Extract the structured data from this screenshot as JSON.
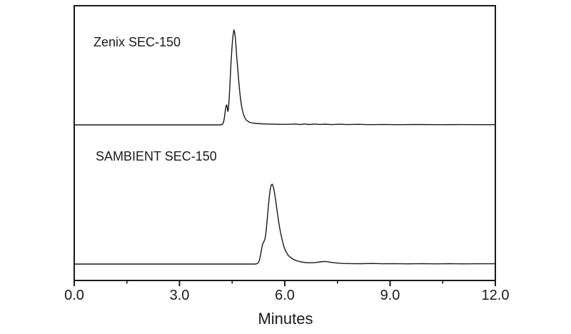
{
  "figure": {
    "background_color": "#ffffff",
    "line_color": "#1a1a1a",
    "text_color": "#1a1a1a"
  },
  "chart_data": {
    "type": "line",
    "title": "",
    "xlabel": "Minutes",
    "ylabel": "",
    "xlim": [
      0.0,
      12.0
    ],
    "grid": false,
    "legend_position": "none",
    "x_major_ticks": [
      0.0,
      3.0,
      6.0,
      9.0,
      12.0
    ],
    "x_minor_ticks": [
      1.5,
      4.5,
      7.5,
      10.5
    ],
    "x_tick_labels": [
      "0.0",
      "3.0",
      "6.0",
      "9.0",
      "12.0"
    ],
    "layout_hint": {
      "style": "two stacked chromatogram traces in one frame, no y axis ticks",
      "top_trace_baseline_frac": 0.435,
      "bottom_trace_baseline_frac": 0.94
    },
    "series": [
      {
        "name": "Zenix SEC-150",
        "peak": {
          "apex_min": 4.55,
          "pre_shoulder_min": 4.34,
          "relative_height": 133,
          "shoulder_height": 28
        },
        "y_units": "relative signal (arbitrary units)",
        "points": [
          [
            0.0,
            0
          ],
          [
            0.6,
            0
          ],
          [
            1.2,
            0
          ],
          [
            1.8,
            0
          ],
          [
            2.4,
            0
          ],
          [
            3.0,
            0
          ],
          [
            3.6,
            0
          ],
          [
            4.0,
            0
          ],
          [
            4.15,
            0
          ],
          [
            4.21,
            0.5
          ],
          [
            4.24,
            2
          ],
          [
            4.27,
            7
          ],
          [
            4.29,
            14
          ],
          [
            4.31,
            22
          ],
          [
            4.33,
            27
          ],
          [
            4.345,
            28
          ],
          [
            4.36,
            24
          ],
          [
            4.375,
            19
          ],
          [
            4.39,
            21
          ],
          [
            4.41,
            32
          ],
          [
            4.43,
            50
          ],
          [
            4.45,
            70
          ],
          [
            4.47,
            89
          ],
          [
            4.49,
            105
          ],
          [
            4.51,
            118
          ],
          [
            4.53,
            127
          ],
          [
            4.55,
            133
          ],
          [
            4.57,
            130
          ],
          [
            4.59,
            122
          ],
          [
            4.61,
            110
          ],
          [
            4.63,
            96
          ],
          [
            4.655,
            81
          ],
          [
            4.68,
            66
          ],
          [
            4.705,
            52
          ],
          [
            4.73,
            40
          ],
          [
            4.76,
            29
          ],
          [
            4.79,
            21
          ],
          [
            4.82,
            15
          ],
          [
            4.86,
            10
          ],
          [
            4.9,
            7
          ],
          [
            4.95,
            5
          ],
          [
            5.0,
            3.5
          ],
          [
            5.1,
            2.5
          ],
          [
            5.2,
            2
          ],
          [
            5.35,
            1.5
          ],
          [
            5.5,
            1.2
          ],
          [
            5.7,
            1
          ],
          [
            5.9,
            0.8
          ],
          [
            6.1,
            0.8
          ],
          [
            6.3,
            1.2
          ],
          [
            6.45,
            0.4
          ],
          [
            6.55,
            1.3
          ],
          [
            6.7,
            0.5
          ],
          [
            6.85,
            1.2
          ],
          [
            7.0,
            0.6
          ],
          [
            7.15,
            1.0
          ],
          [
            7.35,
            0.4
          ],
          [
            7.55,
            0.9
          ],
          [
            7.8,
            0.4
          ],
          [
            8.1,
            0.8
          ],
          [
            8.4,
            0.3
          ],
          [
            8.8,
            0.6
          ],
          [
            9.2,
            0.3
          ],
          [
            9.8,
            0.5
          ],
          [
            10.4,
            0.3
          ],
          [
            11.0,
            0.4
          ],
          [
            11.5,
            0.3
          ],
          [
            12.0,
            0.3
          ]
        ]
      },
      {
        "name": "SAMBIENT SEC-150",
        "peak": {
          "apex_min": 5.64,
          "pre_shoulder_min": 5.41,
          "relative_height": 112,
          "shoulder_height": 32
        },
        "y_units": "relative signal (arbitrary units)",
        "points": [
          [
            0.0,
            0
          ],
          [
            0.8,
            0
          ],
          [
            1.6,
            0
          ],
          [
            2.4,
            0
          ],
          [
            3.2,
            0
          ],
          [
            4.0,
            0
          ],
          [
            4.6,
            0
          ],
          [
            5.0,
            0
          ],
          [
            5.15,
            0
          ],
          [
            5.21,
            0.5
          ],
          [
            5.25,
            2
          ],
          [
            5.28,
            6
          ],
          [
            5.31,
            13
          ],
          [
            5.335,
            20
          ],
          [
            5.36,
            26
          ],
          [
            5.385,
            30
          ],
          [
            5.41,
            32
          ],
          [
            5.435,
            35
          ],
          [
            5.46,
            42
          ],
          [
            5.48,
            52
          ],
          [
            5.5,
            63
          ],
          [
            5.52,
            74
          ],
          [
            5.54,
            85
          ],
          [
            5.56,
            95
          ],
          [
            5.58,
            103
          ],
          [
            5.6,
            108
          ],
          [
            5.62,
            111
          ],
          [
            5.64,
            112
          ],
          [
            5.66,
            110
          ],
          [
            5.685,
            106
          ],
          [
            5.71,
            99
          ],
          [
            5.735,
            91
          ],
          [
            5.76,
            82
          ],
          [
            5.79,
            71
          ],
          [
            5.82,
            61
          ],
          [
            5.85,
            52
          ],
          [
            5.885,
            43
          ],
          [
            5.92,
            35
          ],
          [
            5.96,
            27
          ],
          [
            6.0,
            21
          ],
          [
            6.05,
            16
          ],
          [
            6.1,
            12
          ],
          [
            6.17,
            9
          ],
          [
            6.25,
            6.5
          ],
          [
            6.33,
            4.8
          ],
          [
            6.42,
            3.5
          ],
          [
            6.52,
            2.6
          ],
          [
            6.62,
            2
          ],
          [
            6.75,
            1.8
          ],
          [
            6.88,
            2.2
          ],
          [
            7.0,
            3
          ],
          [
            7.1,
            3.6
          ],
          [
            7.2,
            3.4
          ],
          [
            7.3,
            2.6
          ],
          [
            7.42,
            1.8
          ],
          [
            7.55,
            1.2
          ],
          [
            7.7,
            0.8
          ],
          [
            7.9,
            0.6
          ],
          [
            8.2,
            0.5
          ],
          [
            8.5,
            0.8
          ],
          [
            8.8,
            0.4
          ],
          [
            9.1,
            0.6
          ],
          [
            9.5,
            0.3
          ],
          [
            9.9,
            0.6
          ],
          [
            10.3,
            0.3
          ],
          [
            10.7,
            0.5
          ],
          [
            11.1,
            0.3
          ],
          [
            11.5,
            0.4
          ],
          [
            12.0,
            0.4
          ]
        ]
      }
    ]
  }
}
